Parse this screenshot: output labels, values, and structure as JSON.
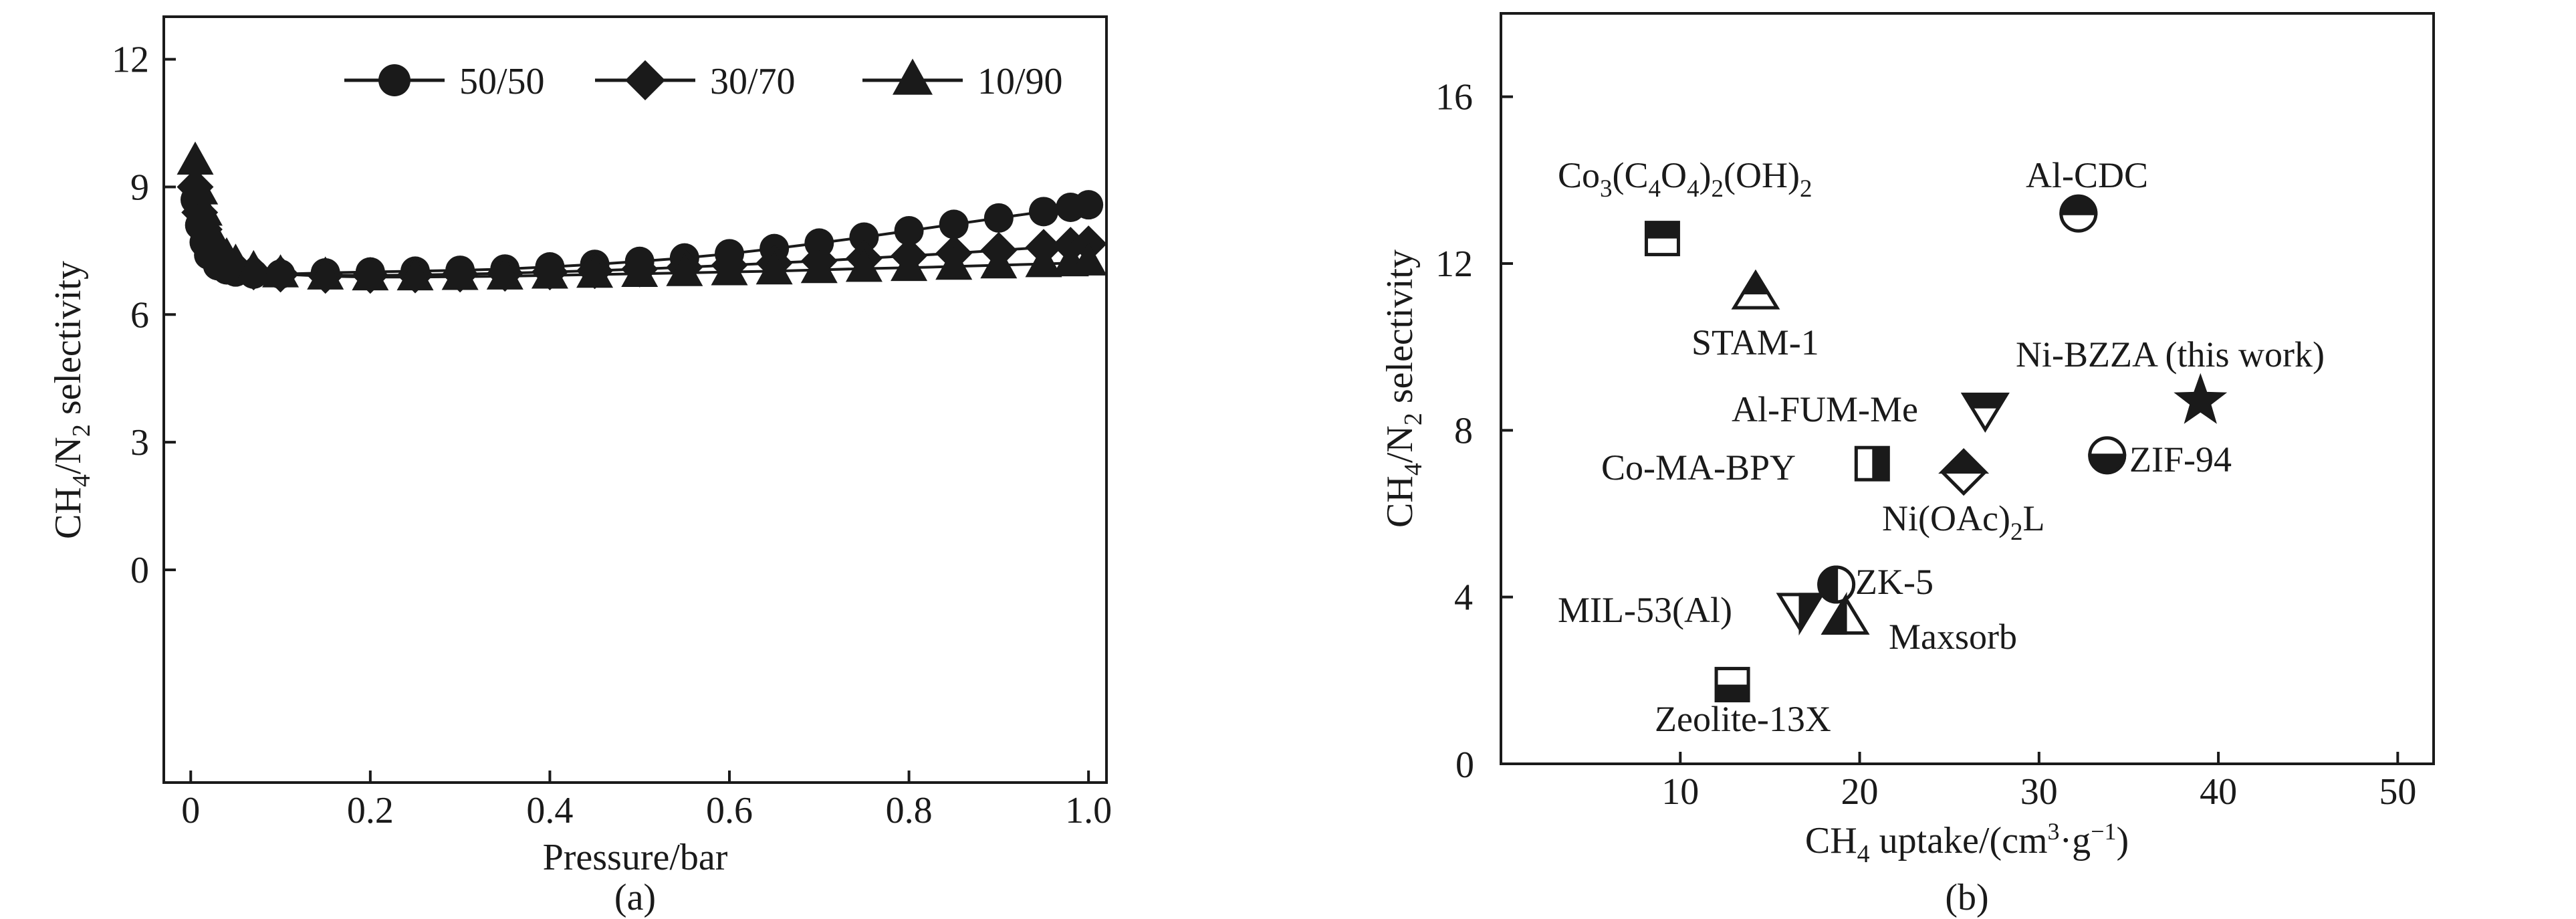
{
  "chart_data": [
    {
      "type": "line",
      "panel_label": "(a)",
      "xlabel": "Pressure/bar",
      "ylabel_parts": {
        "a": "CH",
        "a_sub": "4",
        "b": "/N",
        "b_sub": "2",
        "c": " selectivity"
      },
      "xlim": [
        -0.03,
        1.02
      ],
      "ylim": [
        -5,
        13
      ],
      "xticks": [
        0,
        0.2,
        0.4,
        0.6,
        0.8,
        1.0
      ],
      "xtick_labels": [
        "0",
        "0.2",
        "0.4",
        "0.6",
        "0.8",
        "1.0"
      ],
      "yticks": [
        0,
        3,
        6,
        9,
        12
      ],
      "ytick_labels": [
        "0",
        "3",
        "6",
        "9",
        "12"
      ],
      "legend_position": "top-right",
      "series": [
        {
          "name": "50/50",
          "marker": "circle",
          "x": [
            0.005,
            0.01,
            0.015,
            0.02,
            0.03,
            0.04,
            0.05,
            0.07,
            0.1,
            0.15,
            0.2,
            0.25,
            0.3,
            0.35,
            0.4,
            0.45,
            0.5,
            0.55,
            0.6,
            0.65,
            0.7,
            0.75,
            0.8,
            0.85,
            0.9,
            0.95,
            0.98,
            1.0
          ],
          "y": [
            8.7,
            8.1,
            7.7,
            7.4,
            7.15,
            7.05,
            7.0,
            6.95,
            6.95,
            6.98,
            7.0,
            7.02,
            7.04,
            7.07,
            7.12,
            7.18,
            7.25,
            7.33,
            7.43,
            7.55,
            7.68,
            7.82,
            7.97,
            8.12,
            8.27,
            8.42,
            8.52,
            8.58
          ]
        },
        {
          "name": "30/70",
          "marker": "diamond",
          "x": [
            0.005,
            0.01,
            0.015,
            0.02,
            0.03,
            0.04,
            0.05,
            0.07,
            0.1,
            0.15,
            0.2,
            0.25,
            0.3,
            0.35,
            0.4,
            0.45,
            0.5,
            0.55,
            0.6,
            0.65,
            0.7,
            0.75,
            0.8,
            0.85,
            0.9,
            0.95,
            0.98,
            1.0
          ],
          "y": [
            9.0,
            8.4,
            8.0,
            7.7,
            7.4,
            7.2,
            7.1,
            7.0,
            6.95,
            6.92,
            6.92,
            6.93,
            6.95,
            6.97,
            7.0,
            7.03,
            7.07,
            7.11,
            7.16,
            7.21,
            7.26,
            7.32,
            7.38,
            7.44,
            7.51,
            7.58,
            7.63,
            7.66
          ]
        },
        {
          "name": "10/90",
          "marker": "triangle",
          "x": [
            0.005,
            0.01,
            0.015,
            0.02,
            0.03,
            0.04,
            0.05,
            0.07,
            0.1,
            0.15,
            0.2,
            0.25,
            0.3,
            0.35,
            0.4,
            0.45,
            0.5,
            0.55,
            0.6,
            0.65,
            0.7,
            0.75,
            0.8,
            0.85,
            0.9,
            0.95,
            0.98,
            1.0
          ],
          "y": [
            9.6,
            8.9,
            8.4,
            8.0,
            7.6,
            7.35,
            7.2,
            7.05,
            6.95,
            6.9,
            6.88,
            6.88,
            6.89,
            6.9,
            6.92,
            6.94,
            6.96,
            6.98,
            7.0,
            7.02,
            7.05,
            7.08,
            7.1,
            7.13,
            7.16,
            7.19,
            7.21,
            7.23
          ]
        }
      ]
    },
    {
      "type": "scatter",
      "panel_label": "(b)",
      "xlabel_parts": {
        "a": "CH",
        "a_sub": "4",
        "b": " uptake/(cm",
        "b_sup": "3",
        "c": "·g",
        "c_sup": "−1",
        "d": ")"
      },
      "ylabel_parts": {
        "a": "CH",
        "a_sub": "4",
        "b": "/N",
        "b_sub": "2",
        "c": " selectivity"
      },
      "xlim": [
        0,
        52
      ],
      "ylim": [
        0,
        18
      ],
      "xticks": [
        10,
        20,
        30,
        40,
        50
      ],
      "xtick_labels": [
        "10",
        "20",
        "30",
        "40",
        "50"
      ],
      "yticks": [
        4,
        8,
        12,
        16
      ],
      "ytick_labels": [
        "4",
        "8",
        "12",
        "16"
      ],
      "origin_label": "0",
      "points": [
        {
          "name": "Co3(C4O4)2(OH)2",
          "label_parts": [
            "Co",
            "3",
            "(C",
            "4",
            "O",
            "4",
            ")",
            "2",
            "(OH)",
            "2"
          ],
          "x": 9,
          "y": 12.6,
          "marker": "square-bottom-white"
        },
        {
          "name": "STAM-1",
          "label": "STAM-1",
          "x": 14.2,
          "y": 11.3,
          "marker": "triangle-bottom-white"
        },
        {
          "name": "Al-CDC",
          "label": "Al-CDC",
          "x": 32.2,
          "y": 13.2,
          "marker": "circle-bottom-white"
        },
        {
          "name": "Ni-BZZA (this work)",
          "label": "Ni-BZZA (this work)",
          "x": 39,
          "y": 8.7,
          "marker": "star"
        },
        {
          "name": "Al-FUM-Me",
          "label": "Al-FUM-Me",
          "x": 27,
          "y": 8.5,
          "marker": "triangle-down-top-black"
        },
        {
          "name": "ZIF-94",
          "label": "ZIF-94",
          "x": 33.8,
          "y": 7.4,
          "marker": "circle-top-white"
        },
        {
          "name": "Co-MA-BPY",
          "label": "Co-MA-BPY",
          "x": 20.7,
          "y": 7.2,
          "marker": "square-right-black"
        },
        {
          "name": "Ni(OAc)2L",
          "label_parts": [
            "Ni(OAc)",
            "2",
            "L"
          ],
          "x": 25.8,
          "y": 7.0,
          "marker": "diamond-bottom-white"
        },
        {
          "name": "ZK-5",
          "label": "ZK-5",
          "x": 18.7,
          "y": 4.3,
          "marker": "circle-left-black"
        },
        {
          "name": "MIL-53(Al)",
          "label": "MIL-53(Al)",
          "x": 16.7,
          "y": 3.7,
          "marker": "triangle-down-right-black"
        },
        {
          "name": "Maxsorb",
          "label": "Maxsorb",
          "x": 19.2,
          "y": 3.5,
          "marker": "triangle-left-black"
        },
        {
          "name": "Zeolite-13X",
          "label": "Zeolite-13X",
          "x": 12.9,
          "y": 1.9,
          "marker": "square-bottom-black"
        }
      ]
    }
  ]
}
